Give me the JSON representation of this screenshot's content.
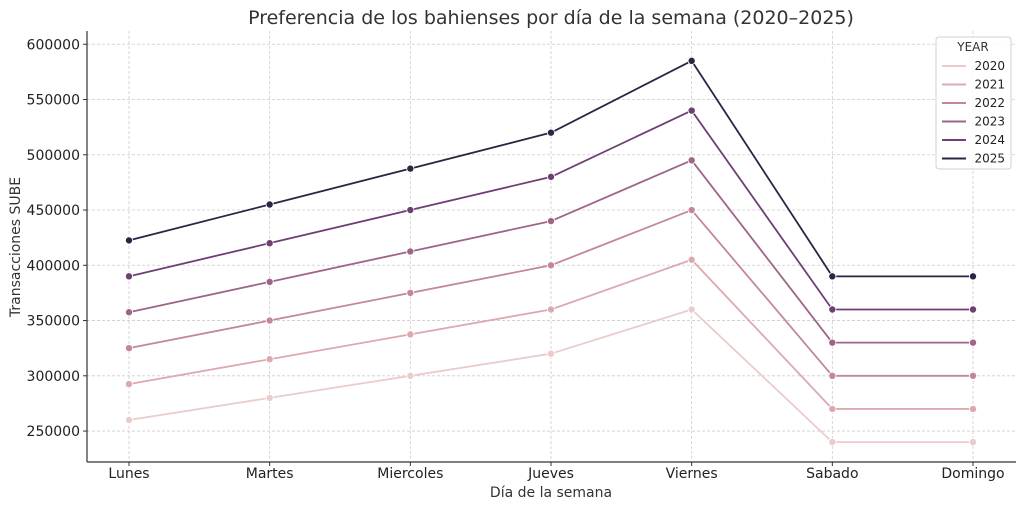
{
  "chart_data": {
    "type": "line",
    "title": "Preferencia de los bahienses por día de la semana (2020–2025)",
    "xlabel": "Día de la semana",
    "ylabel": "Transacciones SUBE",
    "categories": [
      "Lunes",
      "Martes",
      "Miercoles",
      "Jueves",
      "Viernes",
      "Sabado",
      "Domingo"
    ],
    "ylim": [
      222000,
      612000
    ],
    "yticks": [
      250000,
      300000,
      350000,
      400000,
      450000,
      500000,
      550000,
      600000
    ],
    "ytick_labels": [
      "250000",
      "300000",
      "350000",
      "400000",
      "450000",
      "500000",
      "550000",
      "600000"
    ],
    "grid": true,
    "legend": {
      "title": "YEAR",
      "position": "top-right"
    },
    "series": [
      {
        "name": "2020",
        "color": "#ebcbcb",
        "values": [
          260000,
          280000,
          300000,
          320000,
          360000,
          240000,
          240000
        ]
      },
      {
        "name": "2021",
        "color": "#dda9b0",
        "values": [
          292500,
          315000,
          337500,
          360000,
          405000,
          270000,
          270000
        ]
      },
      {
        "name": "2022",
        "color": "#c38896",
        "values": [
          325000,
          350000,
          375000,
          400000,
          450000,
          300000,
          300000
        ]
      },
      {
        "name": "2023",
        "color": "#9f6489",
        "values": [
          357500,
          385000,
          412500,
          440000,
          495000,
          330000,
          330000
        ]
      },
      {
        "name": "2024",
        "color": "#6e3f73",
        "values": [
          390000,
          420000,
          450000,
          480000,
          540000,
          360000,
          360000
        ]
      },
      {
        "name": "2025",
        "color": "#2f2344",
        "values": [
          422500,
          455000,
          487500,
          520000,
          585000,
          390000,
          390000
        ]
      }
    ]
  }
}
